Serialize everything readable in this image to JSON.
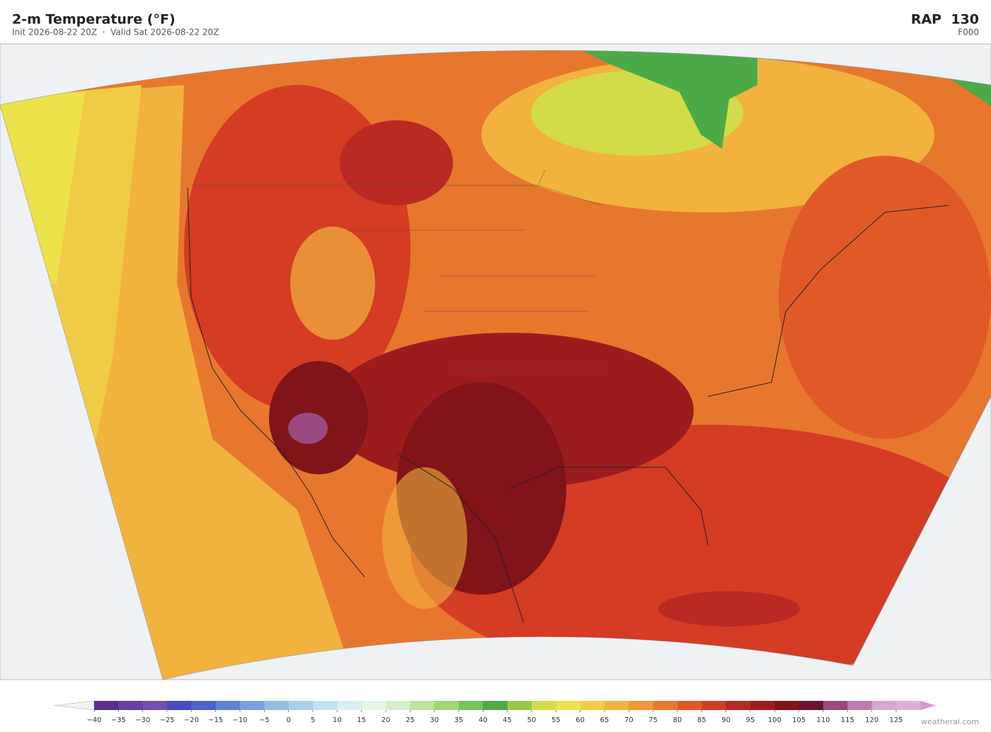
{
  "header": {
    "title": "2-m Temperature  (°F)",
    "subtitle": "Init 2026-08-22 20Z  ·  Valid Sat 2026-08-22 20Z",
    "model": "RAP  130",
    "forecast_hour": "F000"
  },
  "colorbar": {
    "ticks": [
      {
        "value": -40,
        "label": "−40"
      },
      {
        "value": -35,
        "label": "−35"
      },
      {
        "value": -30,
        "label": "−30"
      },
      {
        "value": -25,
        "label": "−25"
      },
      {
        "value": -20,
        "label": "−20"
      },
      {
        "value": -15,
        "label": "−15"
      },
      {
        "value": -10,
        "label": "−10"
      },
      {
        "value": -5,
        "label": "−5"
      },
      0,
      5,
      10,
      15,
      20,
      25,
      30,
      35,
      40,
      45,
      50,
      55,
      60,
      65,
      70,
      75,
      80,
      85,
      90,
      95,
      100,
      105,
      110,
      115,
      120,
      125
    ],
    "colors": [
      "#5a2d8c",
      "#6b3fa0",
      "#7350b0",
      "#4a4ac0",
      "#4f62c8",
      "#5f85d0",
      "#78a2d8",
      "#92bde0",
      "#a8d0e8",
      "#c0e2f0",
      "#d8eef2",
      "#e6f5e8",
      "#d6efc8",
      "#bde3a0",
      "#9ed67c",
      "#76c45c",
      "#4caa48",
      "#98c848",
      "#d2dc48",
      "#ece24a",
      "#f2cc46",
      "#f2b23e",
      "#ee9836",
      "#e87a30",
      "#e05a28",
      "#d43c24",
      "#b82a22",
      "#9c1c1e",
      "#801418",
      "#6a1430",
      "#9a4a80",
      "#c07ab0",
      "#d8a8d0",
      "#e0b0dc"
    ],
    "under_color": "#f2f2f2",
    "over_color": "#d49ad0"
  },
  "footer": {
    "credit": "weatherai.com"
  }
}
